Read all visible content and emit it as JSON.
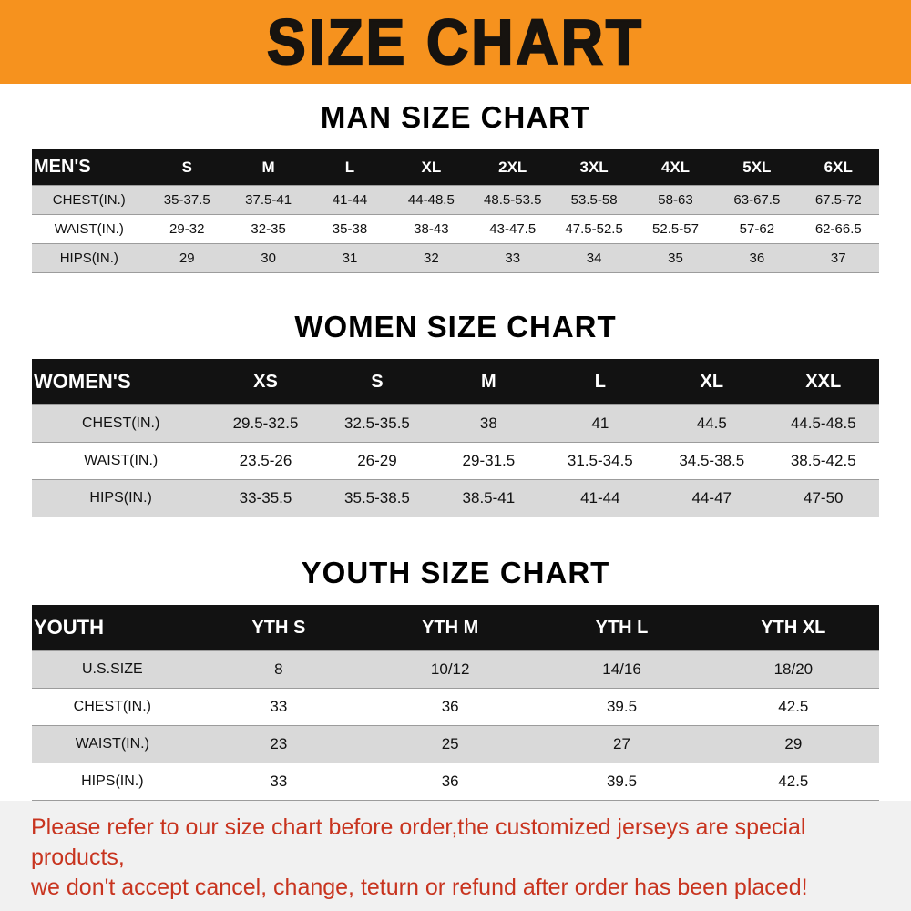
{
  "banner": {
    "title": "SIZE CHART"
  },
  "colors": {
    "banner_bg": "#f6921e",
    "header_bar_bg": "#121212",
    "row_stripe": "#d9d9d9",
    "disclaimer_text": "#c8341f",
    "disclaimer_bg": "#f1f1f1"
  },
  "sections": [
    {
      "id": "mens",
      "heading": "MAN SIZE CHART",
      "header_label": "MEN'S",
      "label_col_width": "13.5%",
      "columns": [
        "S",
        "M",
        "L",
        "XL",
        "2XL",
        "3XL",
        "4XL",
        "5XL",
        "6XL"
      ],
      "rows": [
        {
          "label": "CHEST(IN.)",
          "values": [
            "35-37.5",
            "37.5-41",
            "41-44",
            "44-48.5",
            "48.5-53.5",
            "53.5-58",
            "58-63",
            "63-67.5",
            "67.5-72"
          ]
        },
        {
          "label": "WAIST(IN.)",
          "values": [
            "29-32",
            "32-35",
            "35-38",
            "38-43",
            "43-47.5",
            "47.5-52.5",
            "52.5-57",
            "57-62",
            "62-66.5"
          ]
        },
        {
          "label": "HIPS(IN.)",
          "values": [
            "29",
            "30",
            "31",
            "32",
            "33",
            "34",
            "35",
            "36",
            "37"
          ]
        }
      ]
    },
    {
      "id": "womens",
      "heading": "WOMEN SIZE CHART",
      "header_label": "WOMEN'S",
      "label_col_width": "21%",
      "columns": [
        "XS",
        "S",
        "M",
        "L",
        "XL",
        "XXL"
      ],
      "rows": [
        {
          "label": "CHEST(IN.)",
          "values": [
            "29.5-32.5",
            "32.5-35.5",
            "38",
            "41",
            "44.5",
            "44.5-48.5"
          ]
        },
        {
          "label": "WAIST(IN.)",
          "values": [
            "23.5-26",
            "26-29",
            "29-31.5",
            "31.5-34.5",
            "34.5-38.5",
            "38.5-42.5"
          ]
        },
        {
          "label": "HIPS(IN.)",
          "values": [
            "33-35.5",
            "35.5-38.5",
            "38.5-41",
            "41-44",
            "44-47",
            "47-50"
          ]
        }
      ]
    },
    {
      "id": "youth",
      "heading": "YOUTH SIZE CHART",
      "header_label": "YOUTH",
      "label_col_width": "19%",
      "columns": [
        "YTH S",
        "YTH M",
        "YTH L",
        "YTH XL"
      ],
      "rows": [
        {
          "label": "U.S.SIZE",
          "values": [
            "8",
            "10/12",
            "14/16",
            "18/20"
          ]
        },
        {
          "label": "CHEST(IN.)",
          "values": [
            "33",
            "36",
            "39.5",
            "42.5"
          ]
        },
        {
          "label": "WAIST(IN.)",
          "values": [
            "23",
            "25",
            "27",
            "29"
          ]
        },
        {
          "label": "HIPS(IN.)",
          "values": [
            "33",
            "36",
            "39.5",
            "42.5"
          ]
        }
      ]
    }
  ],
  "footer": {
    "line1": "Please refer to our size chart before order,the customized jerseys are special products,",
    "line2": "we don't accept cancel, change, teturn or refund after order has been placed!"
  }
}
